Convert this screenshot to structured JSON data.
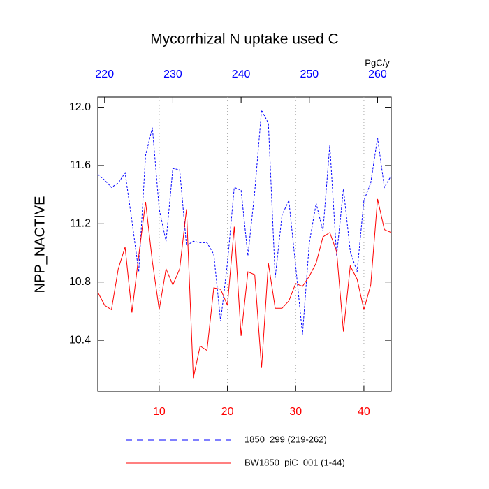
{
  "chart_data": {
    "type": "line",
    "title": "Mycorrhizal N uptake used C",
    "ylabel": "NPP_NACTIVE",
    "x2label": "PgC/y",
    "xlim": [
      1,
      44
    ],
    "xticks": [
      10,
      20,
      30,
      40
    ],
    "x2lim": [
      219,
      262
    ],
    "x2ticks": [
      220,
      230,
      240,
      250,
      260
    ],
    "ylim": [
      10.05,
      12.07
    ],
    "yticks": [
      10.4,
      10.8,
      11.2,
      11.6,
      {
        "value": 12,
        "label": "12.0"
      }
    ],
    "xtick_color": "#ff0000",
    "x2tick_color": "#0000ff",
    "grid": true,
    "series": [
      {
        "name": "1850_299 (219-262)",
        "color": "#0000ff",
        "dashed": true,
        "axis": "x2",
        "x": [
          219,
          220,
          221,
          222,
          223,
          224,
          225,
          226,
          227,
          228,
          229,
          230,
          231,
          232,
          233,
          234,
          235,
          236,
          237,
          238,
          239,
          240,
          241,
          242,
          243,
          244,
          245,
          246,
          247,
          248,
          249,
          250,
          251,
          252,
          253,
          254,
          255,
          256,
          257,
          258,
          259,
          260,
          261,
          262
        ],
        "values": [
          11.54,
          11.5,
          11.45,
          11.48,
          11.55,
          11.22,
          10.87,
          11.67,
          11.86,
          11.3,
          11.08,
          11.58,
          11.57,
          11.05,
          11.08,
          11.07,
          11.07,
          10.99,
          10.53,
          10.93,
          11.45,
          11.43,
          10.98,
          11.42,
          11.98,
          11.89,
          10.83,
          11.26,
          11.36,
          10.91,
          10.44,
          11.07,
          11.34,
          11.15,
          11.74,
          10.98,
          11.44,
          11.01,
          10.87,
          11.36,
          11.48,
          11.79,
          11.45,
          11.53
        ]
      },
      {
        "name": "BW1850_piC_001 (1-44)",
        "color": "#ff0000",
        "dashed": false,
        "x": [
          1,
          2,
          3,
          4,
          5,
          6,
          7,
          8,
          9,
          10,
          11,
          12,
          13,
          14,
          15,
          16,
          17,
          18,
          19,
          20,
          21,
          22,
          23,
          24,
          25,
          26,
          27,
          28,
          29,
          30,
          31,
          32,
          33,
          34,
          35,
          36,
          37,
          38,
          39,
          40,
          41,
          42,
          43,
          44
        ],
        "values": [
          10.73,
          10.64,
          10.61,
          10.89,
          11.04,
          10.59,
          10.98,
          11.35,
          10.94,
          10.61,
          10.89,
          10.78,
          10.89,
          11.3,
          10.14,
          10.36,
          10.33,
          10.76,
          10.75,
          10.64,
          11.18,
          10.43,
          10.87,
          10.85,
          10.21,
          10.93,
          10.62,
          10.62,
          10.67,
          10.79,
          10.77,
          10.84,
          10.93,
          11.11,
          11.14,
          11.01,
          10.46,
          10.91,
          10.82,
          10.61,
          10.78,
          11.37,
          11.16,
          11.14
        ]
      }
    ]
  }
}
